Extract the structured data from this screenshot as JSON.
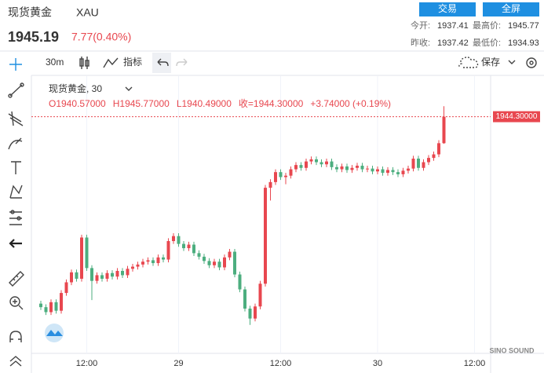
{
  "header": {
    "name": "现货黄金",
    "symbol": "XAU",
    "price": "1945.19",
    "change": "7.77(0.40%)",
    "buttons": [
      "交易",
      "全屏"
    ],
    "stats": [
      [
        "今开:",
        "1937.41",
        "最高价:",
        "1945.77"
      ],
      [
        "昨收:",
        "1937.42",
        "最低价:",
        "1934.93"
      ]
    ]
  },
  "toolbar": {
    "interval": "30m",
    "indicators": "指标",
    "save": "保存"
  },
  "chart_data": {
    "type": "candlestick",
    "legend_title": "现货黄金, 30",
    "legend_values": [
      "O1940.57000",
      "H1945.77000",
      "L1940.49000",
      "收=1944.30000",
      "+3.74000 (+0.19%)"
    ],
    "categories": [
      null,
      null,
      null,
      null,
      null,
      null,
      null,
      null,
      null,
      "12:00",
      null,
      null,
      null,
      null,
      null,
      null,
      null,
      null,
      null,
      null,
      null,
      null,
      null,
      null,
      null,
      null,
      null,
      "29",
      null,
      null,
      null,
      null,
      null,
      null,
      null,
      null,
      null,
      null,
      null,
      null,
      null,
      null,
      null,
      null,
      null,
      null,
      null,
      "12:00",
      null,
      null,
      null,
      null,
      null,
      null,
      null,
      null,
      null,
      null,
      null,
      null,
      null,
      null,
      null,
      null,
      null,
      null,
      "30",
      null,
      null,
      null,
      null,
      null,
      null,
      null,
      null,
      null,
      null,
      null,
      null,
      null,
      null,
      null,
      null,
      null,
      null,
      "12:00"
    ],
    "open": [
      1918.0,
      1917.5,
      1916.8,
      1918.2,
      1917.0,
      1919.5,
      1921.0,
      1922.4,
      1921.5,
      1927.3,
      1923.0,
      1921.2,
      1922.0,
      1921.5,
      1922.3,
      1921.8,
      1922.6,
      1922.0,
      1922.9,
      1923.2,
      1923.5,
      1923.9,
      1924.1,
      1923.7,
      1924.5,
      1924.2,
      1926.8,
      1927.5,
      1926.4,
      1925.8,
      1926.3,
      1925.1,
      1924.6,
      1924.0,
      1923.4,
      1923.9,
      1923.1,
      1924.5,
      1925.3,
      1922.1,
      1920.0,
      1917.3,
      1915.9,
      1917.6,
      1920.8,
      1934.3,
      1935.1,
      1936.5,
      1935.8,
      1936.0,
      1936.9,
      1937.5,
      1937.1,
      1938.0,
      1938.3,
      1937.9,
      1937.6,
      1938.0,
      1937.2,
      1936.9,
      1937.3,
      1936.8,
      1937.1,
      1937.4,
      1936.9,
      1937.0,
      1936.6,
      1936.9,
      1936.4,
      1936.8,
      1936.5,
      1936.2,
      1936.7,
      1937.0,
      1938.4,
      1937.1,
      1937.9,
      1938.5,
      1939.0,
      1940.57,
      null,
      null,
      null,
      null,
      null,
      null
    ],
    "high": [
      1918.4,
      1917.9,
      1918.6,
      1918.6,
      1919.9,
      1921.4,
      1922.8,
      1922.8,
      1927.7,
      1927.7,
      1923.4,
      1922.4,
      1922.4,
      1922.7,
      1922.7,
      1923.0,
      1923.0,
      1923.3,
      1923.6,
      1923.9,
      1924.3,
      1924.5,
      1924.5,
      1924.9,
      1924.9,
      1927.2,
      1927.9,
      1927.9,
      1926.8,
      1926.7,
      1926.7,
      1925.5,
      1925.0,
      1924.4,
      1924.3,
      1924.3,
      1924.9,
      1925.7,
      1925.7,
      1922.5,
      1920.4,
      1917.7,
      1918.0,
      1921.2,
      1934.7,
      1935.5,
      1936.9,
      1936.9,
      1936.4,
      1937.3,
      1937.9,
      1937.9,
      1938.4,
      1938.7,
      1938.7,
      1938.3,
      1938.4,
      1938.4,
      1937.6,
      1937.7,
      1937.7,
      1937.5,
      1937.8,
      1937.8,
      1937.4,
      1937.4,
      1937.3,
      1937.3,
      1937.2,
      1937.2,
      1936.9,
      1937.1,
      1937.4,
      1938.8,
      1938.8,
      1938.3,
      1938.9,
      1939.4,
      1941.0,
      1945.77,
      null,
      null,
      null,
      null,
      null,
      null
    ],
    "low": [
      1917.1,
      1916.4,
      1916.4,
      1916.6,
      1916.6,
      1919.1,
      1920.6,
      1921.1,
      1921.1,
      1922.6,
      1918.5,
      1920.8,
      1921.1,
      1921.1,
      1921.4,
      1921.4,
      1921.6,
      1921.6,
      1922.5,
      1922.8,
      1923.1,
      1923.5,
      1923.3,
      1923.3,
      1923.8,
      1923.8,
      1926.4,
      1926.0,
      1925.4,
      1925.4,
      1924.7,
      1924.2,
      1923.6,
      1923.0,
      1923.0,
      1922.7,
      1922.7,
      1924.1,
      1921.7,
      1919.6,
      1916.9,
      1915.0,
      1915.5,
      1917.2,
      1920.4,
      1932.5,
      1934.7,
      1935.4,
      1934.8,
      1935.6,
      1936.5,
      1936.7,
      1936.7,
      1937.6,
      1937.5,
      1937.2,
      1937.2,
      1936.8,
      1936.5,
      1936.5,
      1936.4,
      1936.4,
      1936.7,
      1936.5,
      1936.5,
      1936.2,
      1936.2,
      1936.0,
      1936.0,
      1936.1,
      1935.8,
      1935.8,
      1936.3,
      1936.6,
      1936.7,
      1936.7,
      1937.5,
      1938.1,
      1938.6,
      1940.49,
      null,
      null,
      null,
      null,
      null,
      null
    ],
    "close": [
      1917.5,
      1916.8,
      1918.2,
      1917.0,
      1919.5,
      1921.0,
      1922.4,
      1921.5,
      1927.3,
      1923.0,
      1921.2,
      1922.0,
      1921.5,
      1922.3,
      1921.8,
      1922.6,
      1922.0,
      1922.9,
      1923.2,
      1923.5,
      1923.9,
      1924.1,
      1923.7,
      1924.5,
      1924.2,
      1926.8,
      1927.5,
      1926.4,
      1925.8,
      1926.3,
      1925.1,
      1924.6,
      1924.0,
      1923.4,
      1923.9,
      1923.1,
      1924.5,
      1925.3,
      1922.1,
      1920.0,
      1917.3,
      1915.9,
      1917.6,
      1920.8,
      1934.3,
      1935.1,
      1936.5,
      1935.8,
      1936.0,
      1936.9,
      1937.5,
      1937.1,
      1938.0,
      1938.3,
      1937.9,
      1937.6,
      1938.0,
      1937.2,
      1936.9,
      1937.3,
      1936.8,
      1937.1,
      1937.4,
      1936.9,
      1937.0,
      1936.6,
      1936.9,
      1936.4,
      1936.8,
      1936.5,
      1936.2,
      1936.7,
      1937.0,
      1938.4,
      1937.1,
      1937.9,
      1938.5,
      1939.0,
      1940.57,
      1944.3,
      null,
      null,
      null,
      null,
      null,
      null
    ],
    "ylim": [
      1911,
      1950
    ],
    "up_color": "#e8474f",
    "down_color": "#4cae7f",
    "grid": true,
    "last_price": {
      "value": 1944.3,
      "label": "1944.30000"
    },
    "watermark": "SINO SOUND"
  }
}
